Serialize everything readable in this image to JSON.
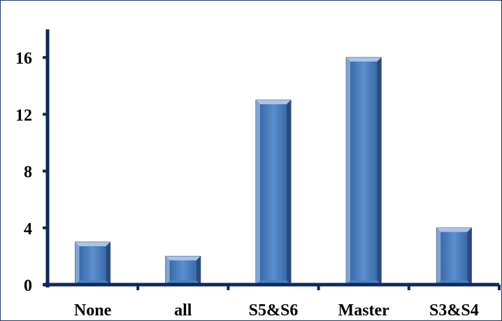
{
  "chart_data": {
    "type": "bar",
    "categories": [
      "None",
      "all",
      "S5&S6",
      "Master",
      "S3&S4"
    ],
    "values": [
      3,
      2,
      13,
      16,
      4
    ],
    "title": "",
    "xlabel": "",
    "ylabel": "",
    "ylim": [
      0,
      18
    ],
    "yticks": [
      "0",
      "4",
      "8",
      "12",
      "16"
    ],
    "grid": false,
    "legend": "none",
    "colors": {
      "bar": "#4f81bd",
      "bar_light": "#a9c4e6",
      "bar_dark": "#2a4a7a",
      "axis": "#0c2a5a",
      "frame": "#1f3a66"
    }
  }
}
